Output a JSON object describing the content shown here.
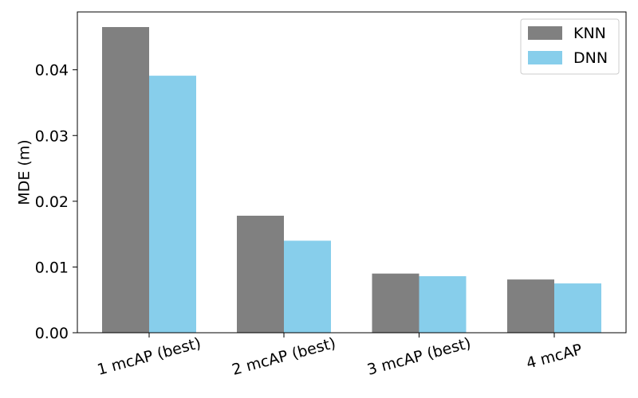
{
  "chart_data": {
    "type": "bar",
    "title": "",
    "xlabel": "",
    "ylabel": "MDE (m)",
    "categories": [
      "1 mcAP (best)",
      "2 mcAP (best)",
      "3 mcAP (best)",
      "4 mcAP"
    ],
    "series": [
      {
        "name": "KNN",
        "color": "#808080",
        "values": [
          0.0465,
          0.0178,
          0.009,
          0.0081
        ]
      },
      {
        "name": "DNN",
        "color": "#87CEEB",
        "values": [
          0.0391,
          0.014,
          0.0086,
          0.0075
        ]
      }
    ],
    "ylim": [
      0,
      0.0488
    ],
    "yticks": [
      "0.00",
      "0.01",
      "0.02",
      "0.03",
      "0.04"
    ],
    "grid": false,
    "legend_position": "top-right"
  }
}
